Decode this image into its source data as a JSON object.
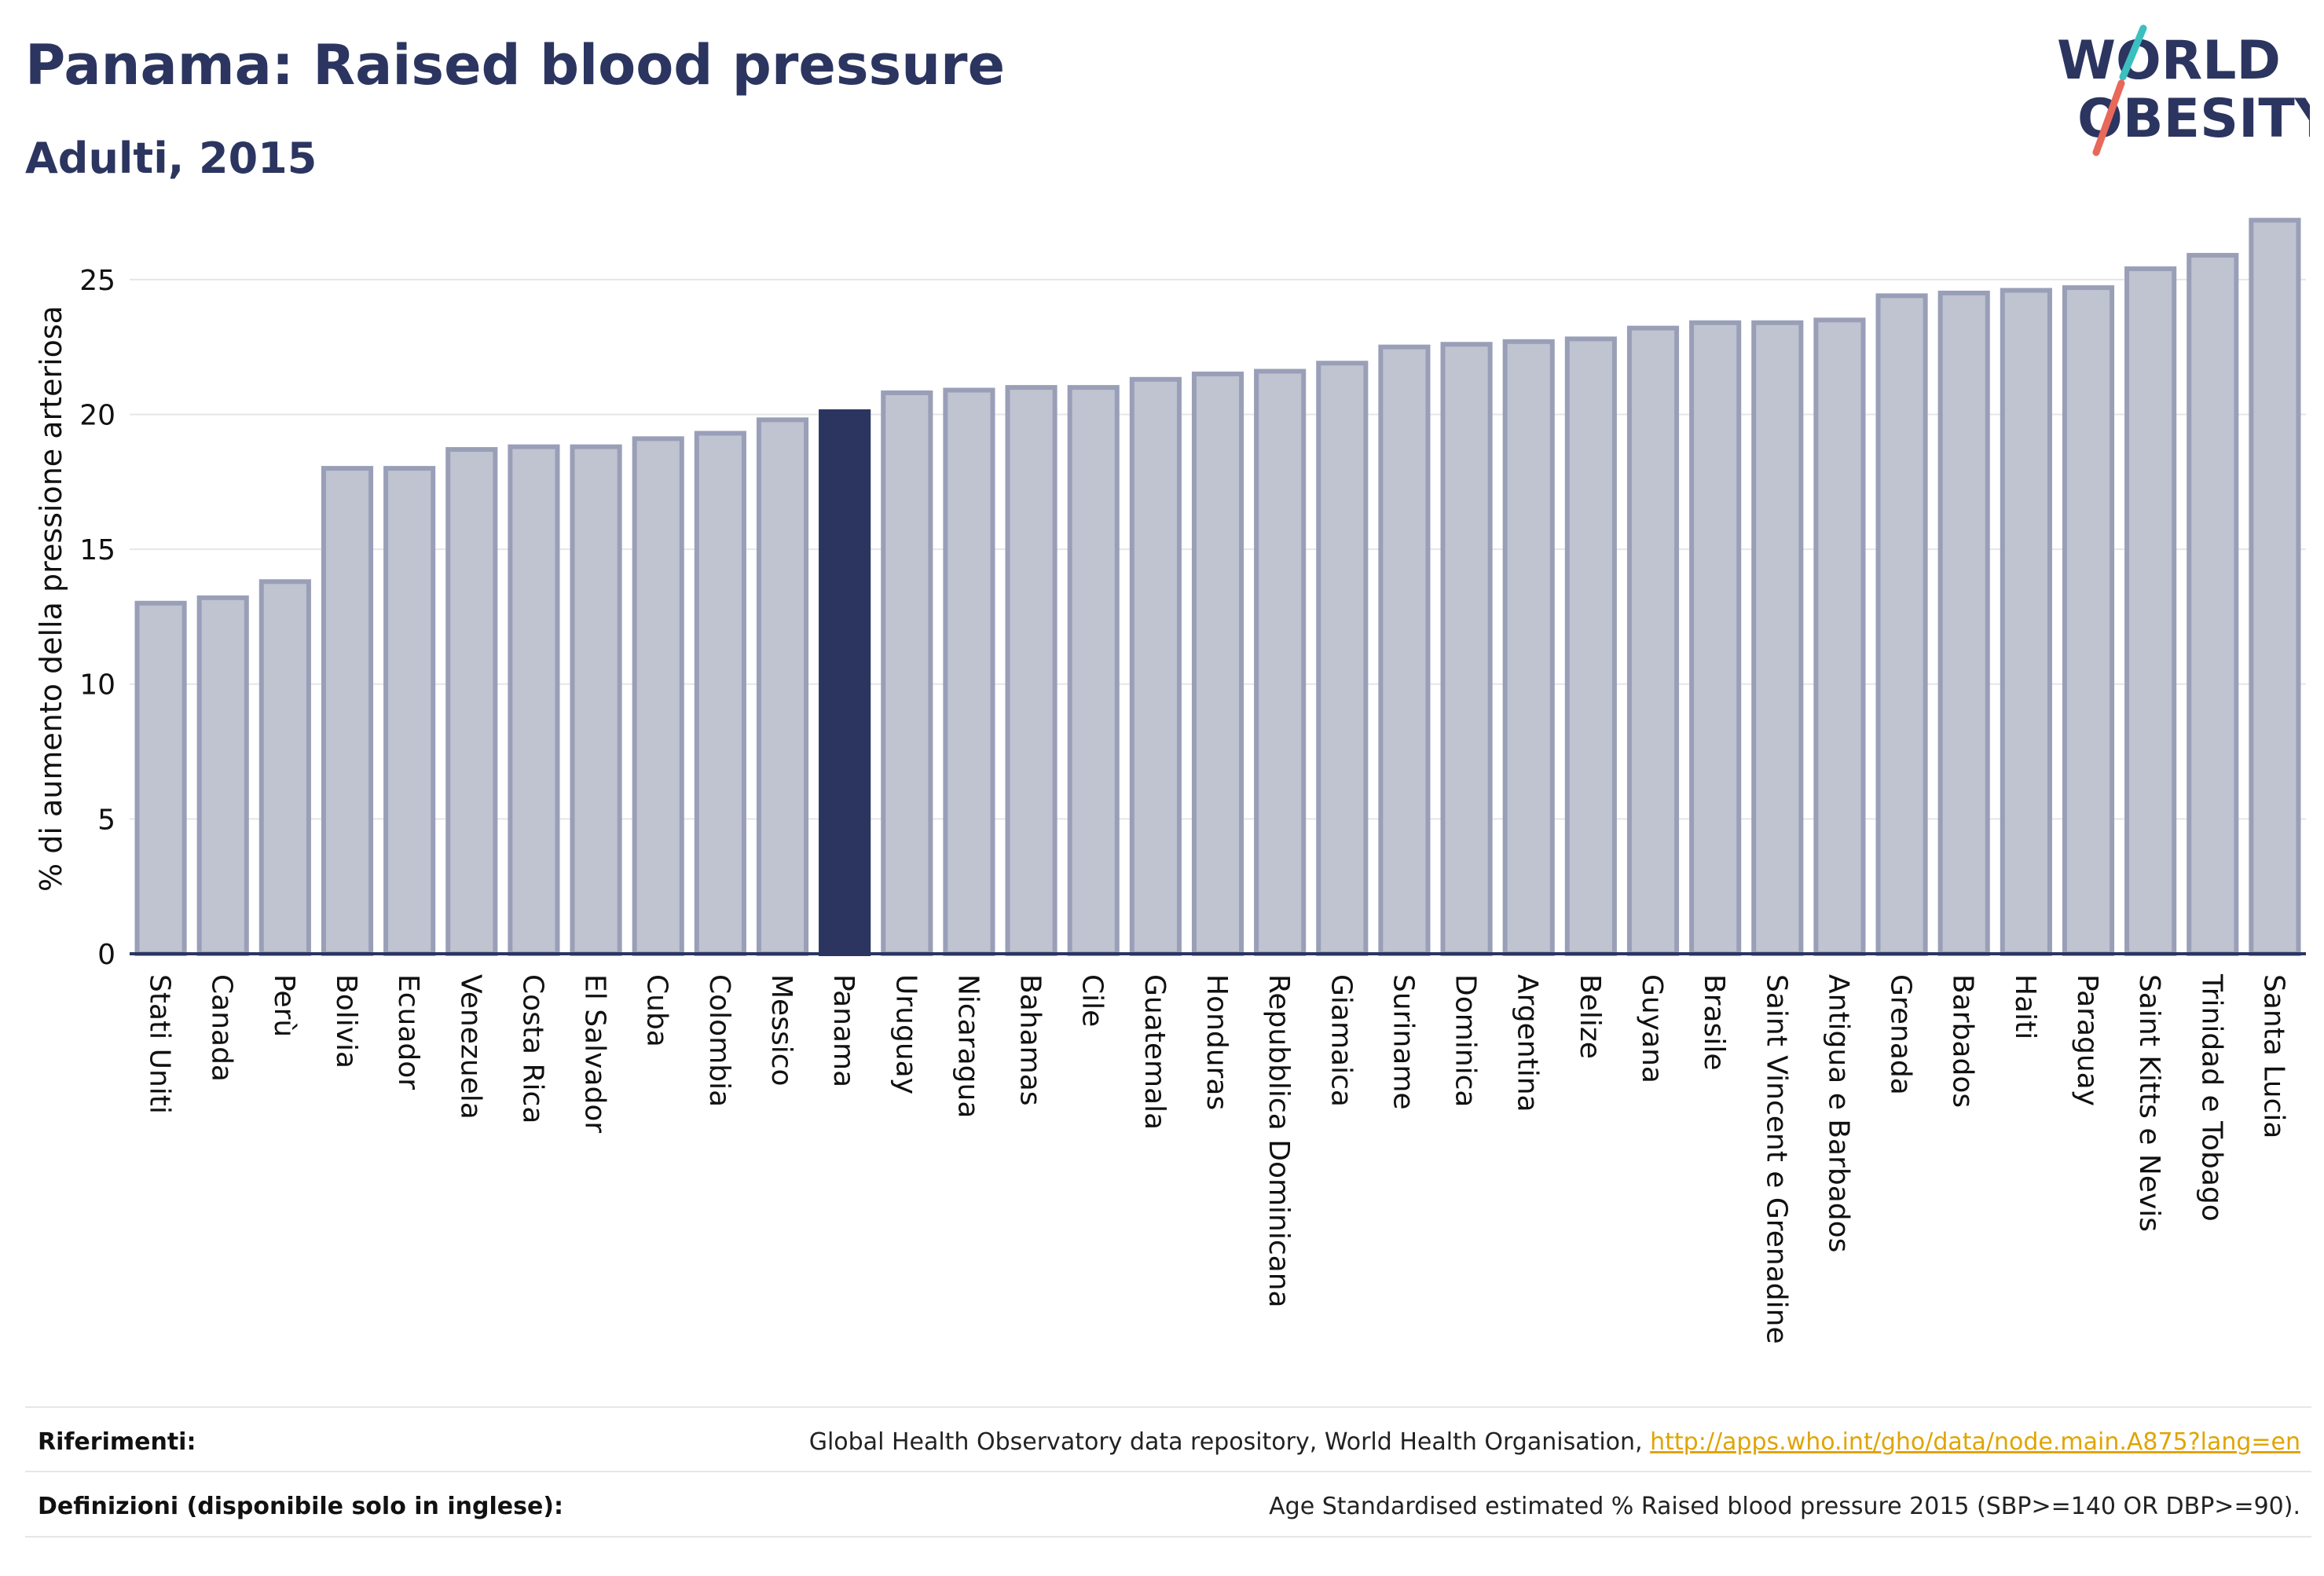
{
  "header": {
    "title": "Panama: Raised blood pressure",
    "subtitle": "Adulti, 2015"
  },
  "logo": {
    "line1": "WORLD",
    "line2": "OBESITY",
    "accent_teal": "#3bbfbf",
    "accent_red": "#e8685a"
  },
  "chart_data": {
    "type": "bar",
    "ylabel": "% di aumento della pressione arteriosa",
    "xlabel": "",
    "ylim": [
      0,
      27.5
    ],
    "yticks": [
      0,
      5,
      10,
      15,
      20,
      25
    ],
    "grid": true,
    "highlight": "Panama",
    "colors": {
      "bar": "#c0c3d0",
      "bar_edge": "#9a9fb8",
      "highlight": "#2b3560"
    },
    "categories": [
      "Stati Uniti",
      "Canada",
      "Perù",
      "Bolivia",
      "Ecuador",
      "Venezuela",
      "Costa Rica",
      "El Salvador",
      "Cuba",
      "Colombia",
      "Messico",
      "Panama",
      "Uruguay",
      "Nicaragua",
      "Bahamas",
      "Cile",
      "Guatemala",
      "Honduras",
      "Repubblica Dominicana",
      "Giamaica",
      "Suriname",
      "Dominica",
      "Argentina",
      "Belize",
      "Guyana",
      "Brasile",
      "Saint Vincent e Grenadine",
      "Antigua e Barbados",
      "Grenada",
      "Barbados",
      "Haiti",
      "Paraguay",
      "Saint Kitts e Nevis",
      "Trinidad e Tobago",
      "Santa Lucia"
    ],
    "values": [
      13.0,
      13.2,
      13.8,
      18.0,
      18.0,
      18.7,
      18.8,
      18.8,
      19.1,
      19.3,
      19.8,
      20.1,
      20.8,
      20.9,
      21.0,
      21.0,
      21.3,
      21.5,
      21.6,
      21.9,
      22.5,
      22.6,
      22.7,
      22.8,
      23.2,
      23.4,
      23.4,
      23.5,
      24.4,
      24.5,
      24.6,
      24.7,
      25.4,
      25.9,
      27.2
    ]
  },
  "footer": {
    "references_label": "Riferimenti:",
    "references_text": "Global Health Observatory data repository, World Health Organisation,",
    "references_link": "http://apps.who.int/gho/data/node.main.A875?lang=en",
    "definitions_label": "Definizioni (disponibile solo in inglese):",
    "definitions_text": "Age Standardised estimated % Raised blood pressure 2015 (SBP>=140 OR DBP>=90)."
  }
}
